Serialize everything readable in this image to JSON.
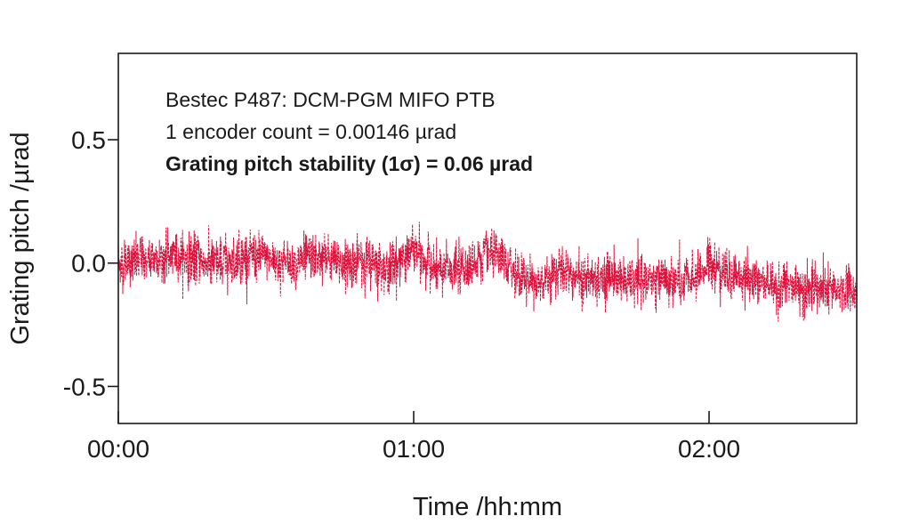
{
  "chart_data": {
    "type": "line",
    "title": "",
    "xlabel": "Time /hh:mm",
    "ylabel": "Grating pitch /µrad",
    "xlim_minutes": [
      0,
      150
    ],
    "ylim": [
      -0.65,
      0.85
    ],
    "x_ticks": [
      {
        "value": 0,
        "label": "00:00"
      },
      {
        "value": 60,
        "label": "01:00"
      },
      {
        "value": 120,
        "label": "02:00"
      }
    ],
    "y_ticks": [
      {
        "value": 0.5,
        "label": "0.5"
      },
      {
        "value": 0.0,
        "label": "0.0"
      },
      {
        "value": -0.5,
        "label": "-0.5"
      }
    ],
    "grid": false,
    "legend": "none",
    "annotations": [
      {
        "text": "Bestec P487: DCM-PGM MIFO PTB",
        "bold": false
      },
      {
        "text": "1 encoder count = 0.00146 µrad",
        "bold": false
      },
      {
        "text": "Grating pitch stability (1σ) = 0.06 µrad",
        "bold": true
      }
    ],
    "series": [
      {
        "color": "#e0103c",
        "noise_sigma": 0.06,
        "baseline": {
          "x": [
            0,
            5,
            10,
            15,
            20,
            25,
            30,
            35,
            40,
            45,
            50,
            55,
            60,
            65,
            70,
            75,
            80,
            85,
            90,
            95,
            100,
            105,
            110,
            115,
            120,
            125,
            130,
            135,
            140,
            145,
            150
          ],
          "y": [
            0.0,
            0.01,
            0.03,
            0.02,
            -0.01,
            0.03,
            0.02,
            0.0,
            0.02,
            0.0,
            0.01,
            -0.02,
            0.05,
            -0.04,
            -0.02,
            0.04,
            -0.03,
            -0.08,
            -0.02,
            -0.07,
            -0.05,
            -0.08,
            -0.06,
            -0.09,
            0.0,
            -0.05,
            -0.07,
            -0.1,
            -0.1,
            -0.12,
            -0.1
          ]
        }
      }
    ]
  },
  "colors": {
    "series": "#e0103c",
    "axis": "#1a1a1a",
    "background": "#ffffff"
  }
}
